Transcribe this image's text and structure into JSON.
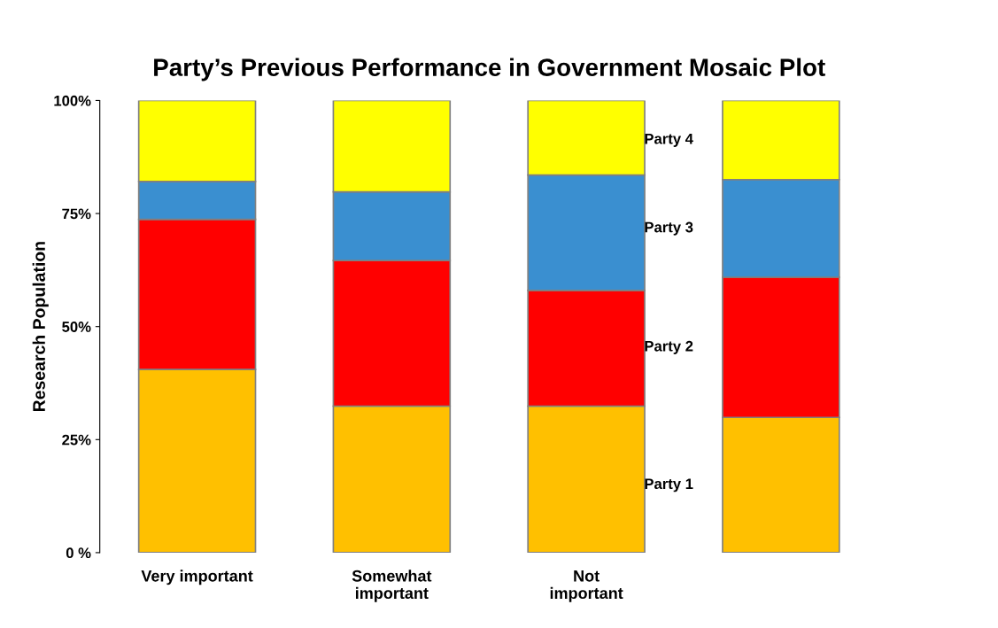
{
  "chart_data": {
    "type": "bar",
    "stacked": true,
    "title": "Party’s Previous Performance in Government Mosaic Plot",
    "ylabel": "Research Population",
    "categories": [
      "Very important",
      "Somewhat\nimportant",
      "Not\nimportant",
      null
    ],
    "series": [
      {
        "name": "Party 1",
        "color": "#ffc000",
        "values": [
          40.5,
          32.4,
          32.4,
          29.9
        ]
      },
      {
        "name": "Party 2",
        "color": "#ff0000",
        "values": [
          33.2,
          32.2,
          25.6,
          31.0
        ]
      },
      {
        "name": "Party 3",
        "color": "#3a8fd0",
        "values": [
          8.4,
          15.2,
          25.5,
          21.6
        ]
      },
      {
        "name": "Party 4",
        "color": "#ffff00",
        "values": [
          17.9,
          20.2,
          16.5,
          17.5
        ]
      }
    ],
    "ylim": [
      0,
      100
    ],
    "yticks": [
      {
        "value": 0,
        "label": "0 %"
      },
      {
        "value": 25,
        "label": "25%"
      },
      {
        "value": 50,
        "label": "50%"
      },
      {
        "value": 75,
        "label": "75%"
      },
      {
        "value": 100,
        "label": "100%"
      }
    ],
    "grid": false,
    "legend": false
  }
}
